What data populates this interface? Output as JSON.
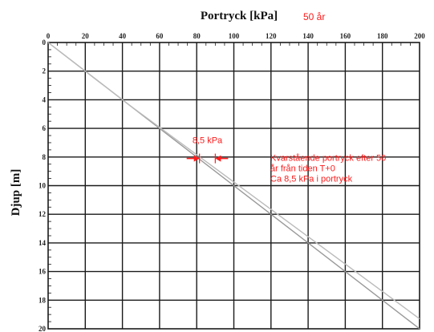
{
  "chart_data": {
    "type": "line",
    "title": "Portryck [kPa]",
    "subtitle": "50 år",
    "xlabel": "Portryck [kPa]",
    "ylabel": "Djup [m]",
    "xlim": [
      0,
      200
    ],
    "ylim": [
      0,
      20
    ],
    "y_inverted": true,
    "x_ticks": [
      "0",
      "20",
      "40",
      "60",
      "80",
      "100",
      "120",
      "140",
      "160",
      "180",
      "200"
    ],
    "y_ticks": [
      "0",
      "2",
      "4",
      "6",
      "8",
      "10",
      "12",
      "14",
      "16",
      "18",
      "20"
    ],
    "grid": true,
    "series": [
      {
        "x": [
          0,
          200
        ],
        "y": [
          0,
          20
        ],
        "color": "#999999"
      },
      {
        "x": [
          0,
          43,
          200
        ],
        "y": [
          0,
          4.3,
          19.3
        ],
        "color": "#bbbbbb"
      }
    ],
    "annotations": {
      "gap_label": "8,5 kPa",
      "gap_at_depth": 8.1,
      "gap_x_from": 81.5,
      "gap_x_to": 90,
      "note_lines": [
        "Kvarstående portryck efter 50",
        "år från tiden T+0",
        "Ca 8,5 kPa i portryck"
      ]
    },
    "colors": {
      "annotation": "#ff1a1a",
      "grid": "#1a1a1a"
    }
  }
}
